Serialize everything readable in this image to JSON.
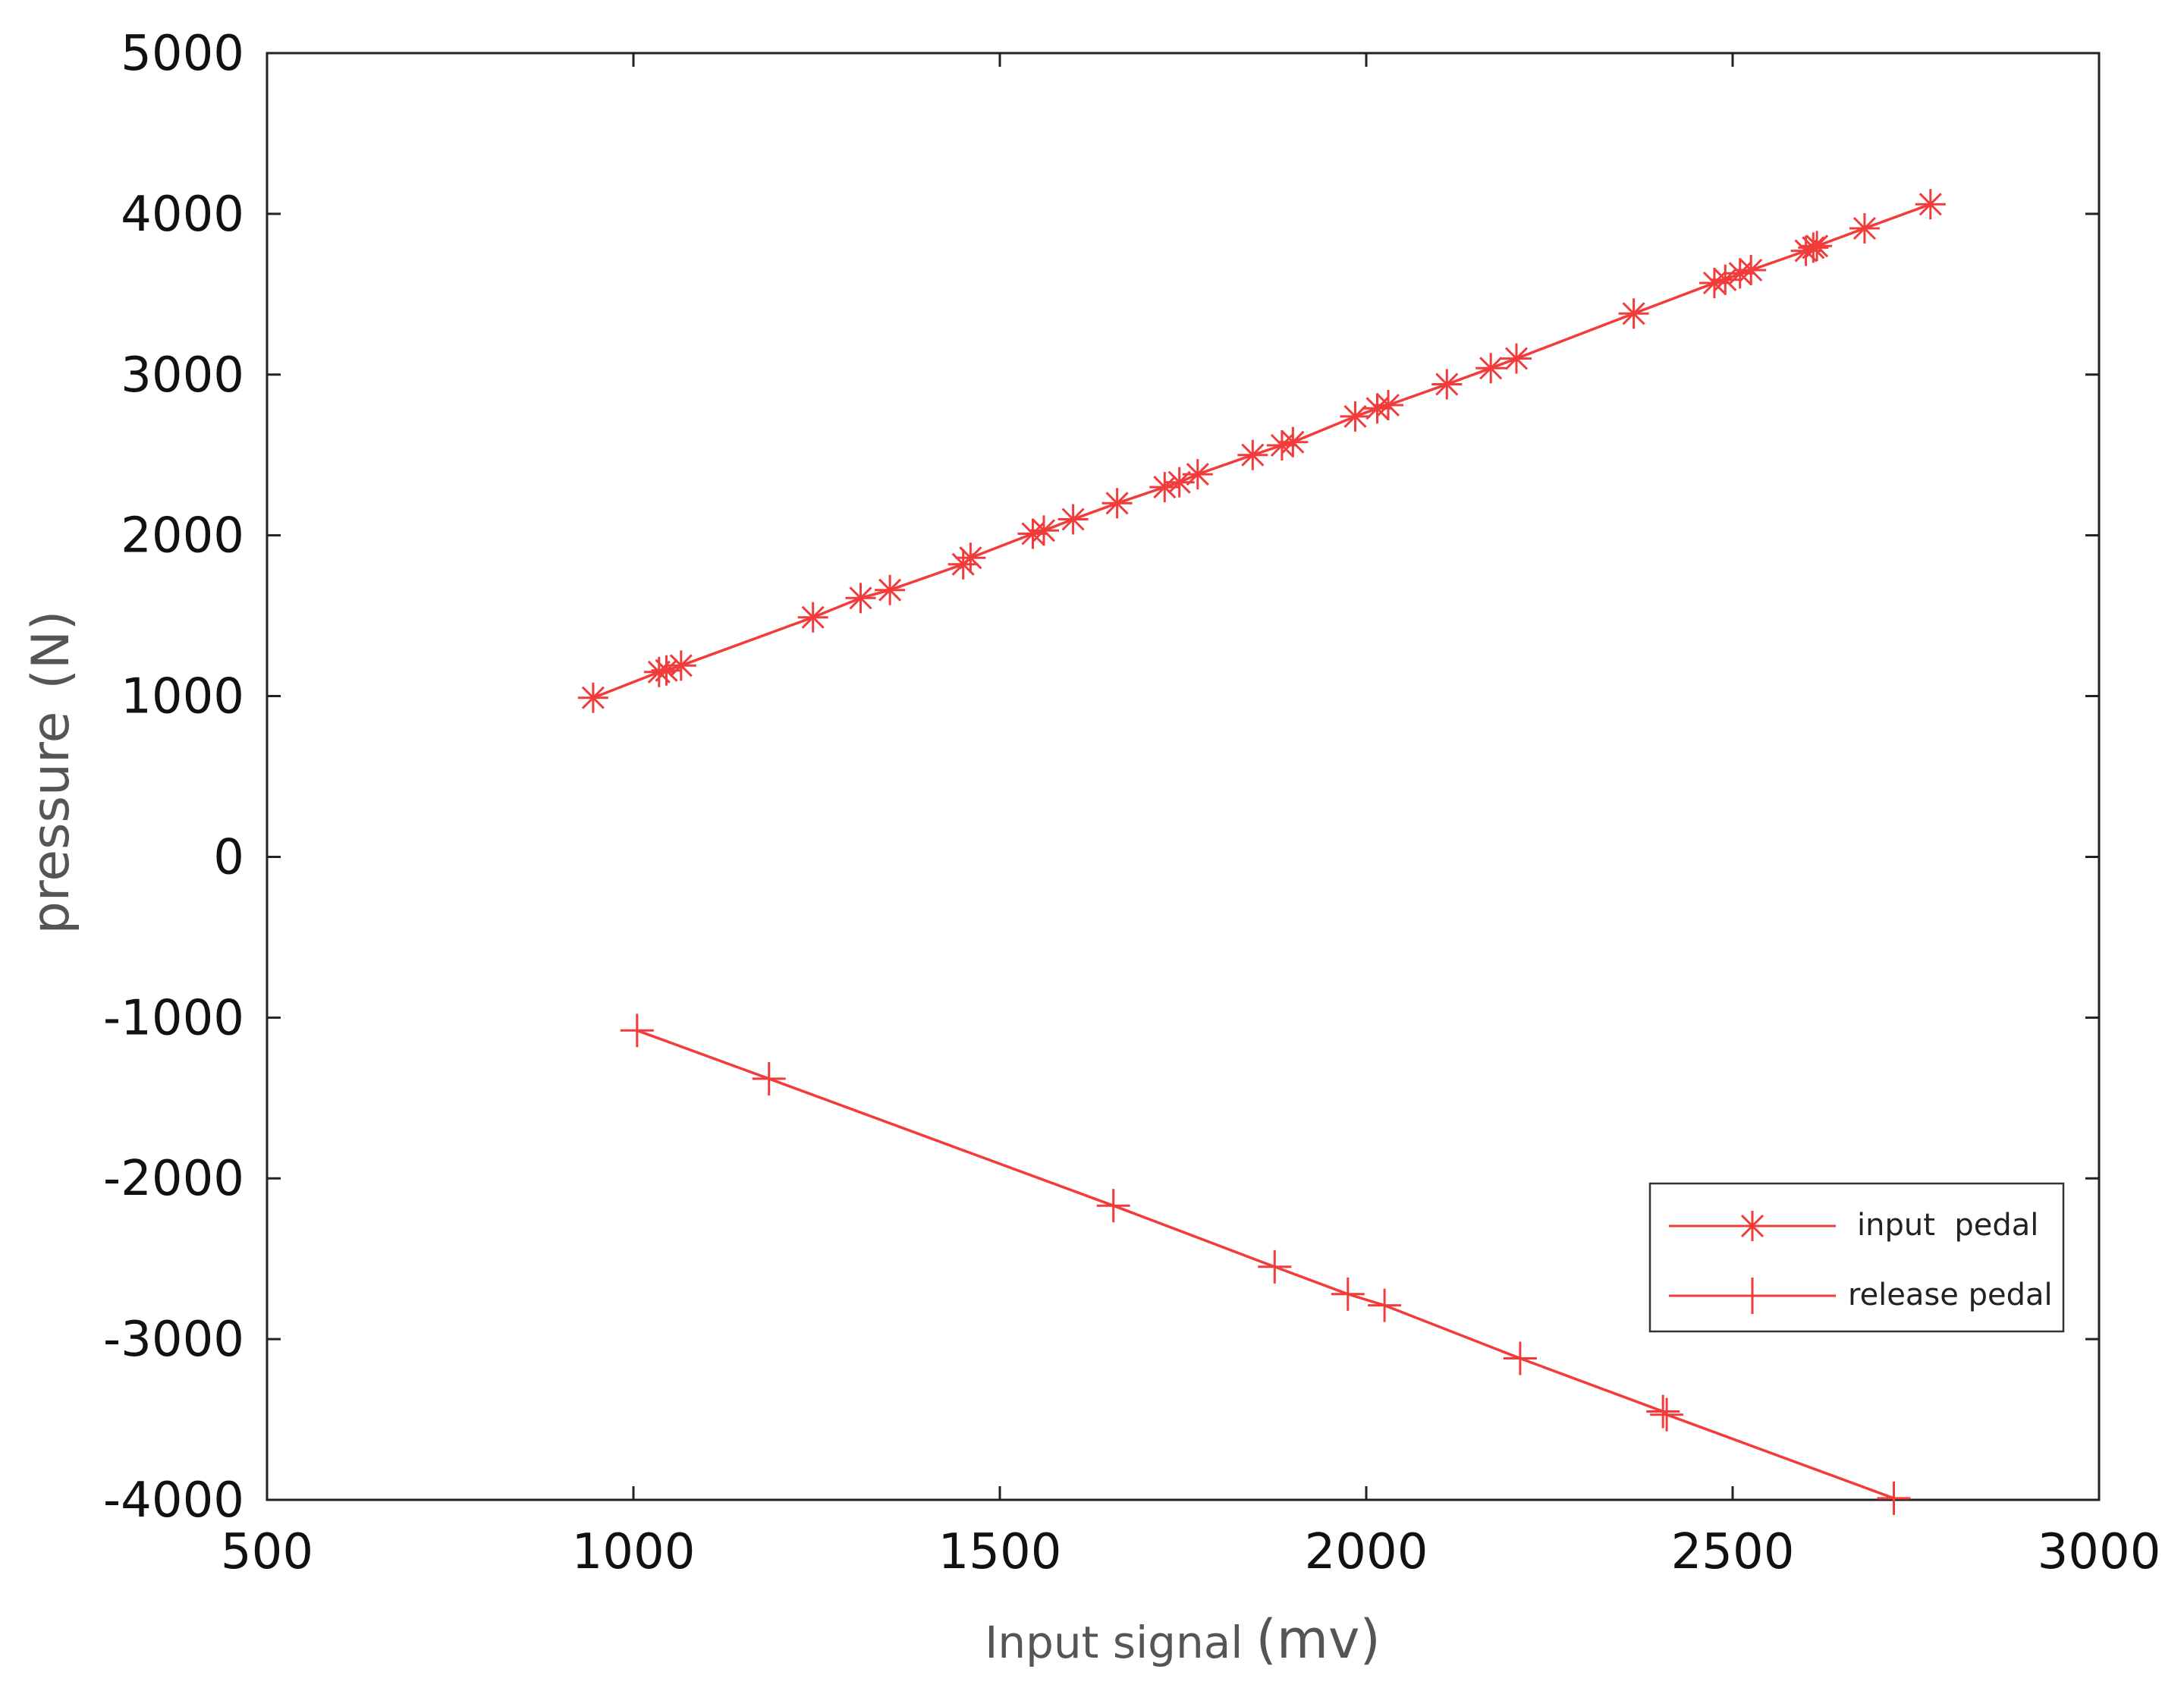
{
  "chart_data": {
    "type": "line",
    "title": "",
    "xlabel": "Input signal",
    "xlabel_unit": "(mv)",
    "ylabel": "pressure",
    "ylabel_unit": "(N)",
    "xlim": [
      500,
      3000
    ],
    "ylim": [
      -4000,
      5000
    ],
    "xticks": [
      500,
      1000,
      1500,
      2000,
      2500,
      3000
    ],
    "yticks": [
      5000,
      4000,
      3000,
      2000,
      1000,
      0,
      -1000,
      -2000,
      -3000,
      -4000
    ],
    "xtick_labels": [
      "500",
      "1000",
      "1500",
      "2000",
      "2500",
      "3000"
    ],
    "ytick_labels": [
      "5000",
      "4000",
      "3000",
      "2000",
      "1000",
      "0",
      "-1000",
      "-2000",
      "-3000",
      "-4000"
    ],
    "grid": false,
    "legend_position": "bottom-right",
    "series": [
      {
        "name": "input  pedal",
        "marker": "asterisk",
        "color": "#f23c3c",
        "x": [
          945,
          1035,
          1045,
          1065,
          1245,
          1310,
          1350,
          1450,
          1460,
          1545,
          1560,
          1600,
          1660,
          1725,
          1745,
          1770,
          1845,
          1885,
          1900,
          1985,
          2015,
          2030,
          2110,
          2170,
          2205,
          2365,
          2475,
          2490,
          2510,
          2525,
          2600,
          2610,
          2615,
          2680,
          2770
        ],
        "y": [
          990,
          1150,
          1160,
          1190,
          1490,
          1610,
          1660,
          1820,
          1860,
          2010,
          2030,
          2100,
          2200,
          2300,
          2330,
          2380,
          2500,
          2560,
          2580,
          2740,
          2790,
          2810,
          2940,
          3040,
          3100,
          3380,
          3570,
          3590,
          3630,
          3650,
          3770,
          3790,
          3800,
          3910,
          4060
        ]
      },
      {
        "name": "release pedal",
        "marker": "plus",
        "color": "#f23c3c",
        "x": [
          1005,
          1185,
          1655,
          1875,
          1975,
          2025,
          2210,
          2405,
          2410,
          2720
        ],
        "y": [
          -1080,
          -1380,
          -2170,
          -2550,
          -2720,
          -2790,
          -3120,
          -3450,
          -3470,
          -3990
        ]
      }
    ]
  }
}
